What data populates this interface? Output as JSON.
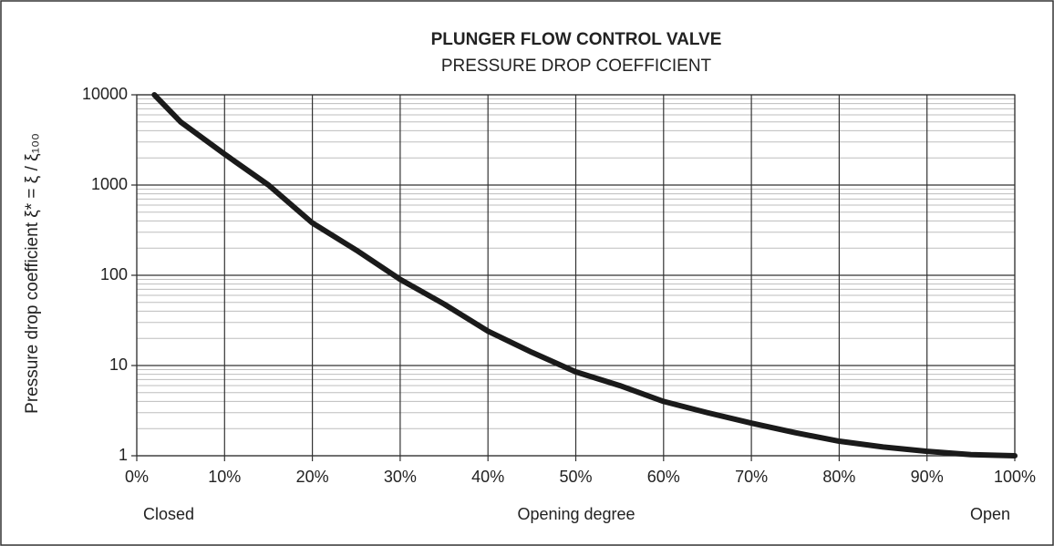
{
  "chart_data": {
    "type": "line",
    "title": "PLUNGER FLOW CONTROL VALVE",
    "subtitle": "PRESSURE DROP COEFFICIENT",
    "y_label": "Pressure drop coefficient ξ* = ξ / ξ₁₀₀",
    "x_label": "Opening degree",
    "annotations": [
      "Closed",
      "Open"
    ],
    "x": [
      2,
      5,
      10,
      15,
      20,
      25,
      30,
      35,
      40,
      45,
      50,
      55,
      60,
      65,
      70,
      75,
      80,
      85,
      90,
      95,
      100
    ],
    "series": [
      {
        "name": "Pressure drop coefficient",
        "color": "#1a1a1a",
        "values": [
          10000,
          5000,
          2200,
          1000,
          380,
          190,
          90,
          48,
          24,
          14,
          8.5,
          6,
          4,
          3,
          2.3,
          1.8,
          1.45,
          1.25,
          1.12,
          1.03,
          1
        ]
      }
    ],
    "xlim": [
      0,
      100
    ],
    "xticks": [
      {
        "value": 0,
        "label": "0%"
      },
      {
        "value": 10,
        "label": "10%"
      },
      {
        "value": 20,
        "label": "20%"
      },
      {
        "value": 30,
        "label": "30%"
      },
      {
        "value": 40,
        "label": "40%"
      },
      {
        "value": 50,
        "label": "50%"
      },
      {
        "value": 60,
        "label": "60%"
      },
      {
        "value": 70,
        "label": "70%"
      },
      {
        "value": 80,
        "label": "80%"
      },
      {
        "value": 90,
        "label": "90%"
      },
      {
        "value": 100,
        "label": "100%"
      }
    ],
    "ylim": [
      1,
      10000
    ],
    "yticks": [
      1,
      10,
      100,
      1000,
      10000
    ],
    "log_y": true,
    "grid": true,
    "minor_grid": true
  }
}
